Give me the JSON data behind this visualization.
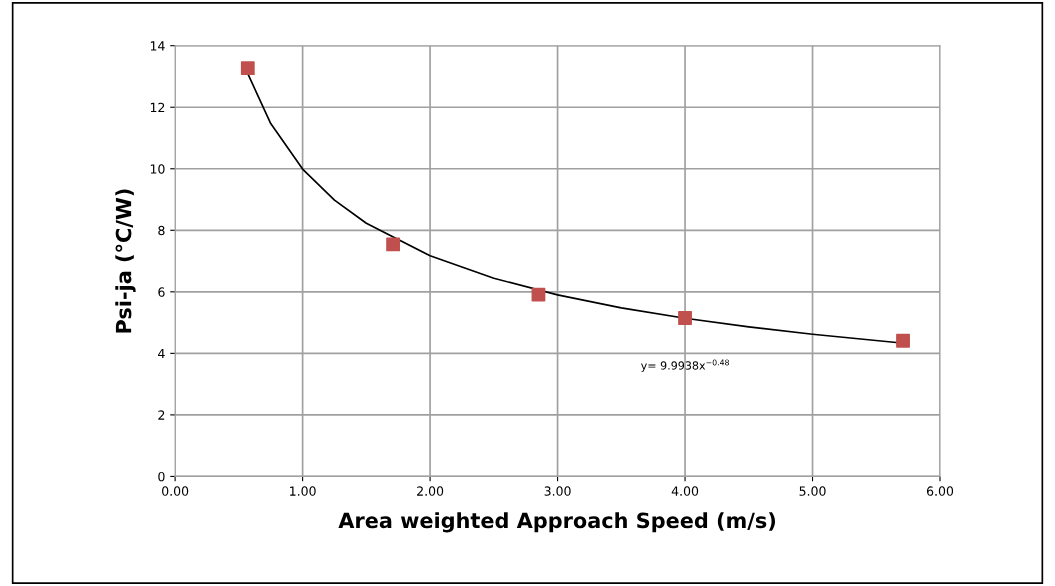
{
  "chart_data": {
    "type": "scatter",
    "xlabel": "Area weighted Approach Speed (m/s)",
    "ylabel": "Psi-ja (°C/W)",
    "series": [
      {
        "color": "#c0504d",
        "marker": "square",
        "x": [
          0.57,
          1.71,
          2.85,
          4.0,
          5.71
        ],
        "values": [
          13.27,
          7.54,
          5.91,
          5.15,
          4.41
        ]
      },
      {
        "type": "line",
        "color": "#000000",
        "marker": "none",
        "line_style": "solid",
        "x": [
          0.57,
          0.75,
          1,
          1.25,
          1.5,
          2,
          2.5,
          3,
          3.5,
          4,
          4.5,
          5,
          5.71
        ],
        "values": [
          13.09,
          11.47,
          9.99,
          8.98,
          8.23,
          7.17,
          6.44,
          5.9,
          5.48,
          5.14,
          4.86,
          4.62,
          4.33
        ]
      }
    ],
    "annotations": [
      "y= 9.9938x$^{−0.48}$"
    ],
    "xlim": [
      0,
      6
    ],
    "ylim": [
      0,
      14
    ],
    "xticks": [
      {
        "value": 0,
        "label": "0.00"
      },
      {
        "value": 1,
        "label": "1.00"
      },
      {
        "value": 2,
        "label": "2.00"
      },
      {
        "value": 3,
        "label": "3.00"
      },
      {
        "value": 4,
        "label": "4.00"
      },
      {
        "value": 5,
        "label": "5.00"
      },
      {
        "value": 6,
        "label": "6.00"
      }
    ],
    "yticks": [
      0,
      2,
      4,
      6,
      8,
      10,
      12,
      14
    ],
    "grid": true,
    "legend": false
  }
}
